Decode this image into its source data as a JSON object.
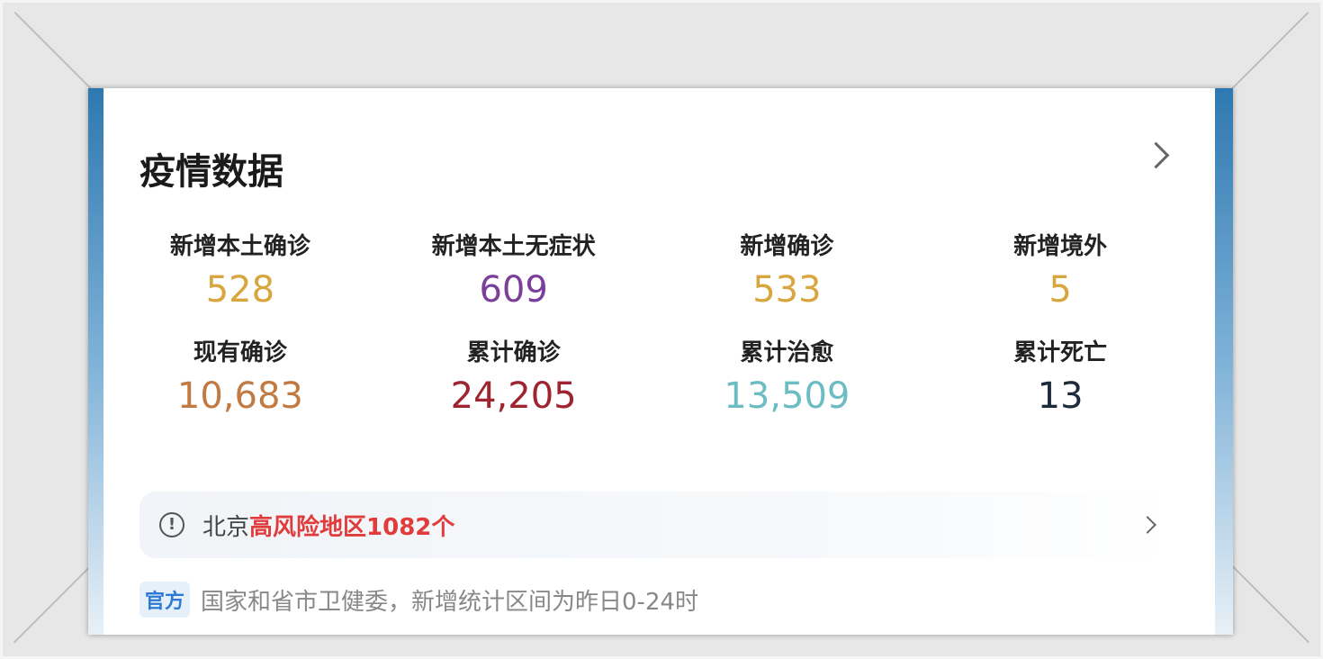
{
  "card": {
    "title": "疫情数据"
  },
  "stats": [
    {
      "label": "新增本土确诊",
      "value": "528",
      "color": "#d8a63f"
    },
    {
      "label": "新增本土无症状",
      "value": "609",
      "color": "#7b3f9a"
    },
    {
      "label": "新增确诊",
      "value": "533",
      "color": "#d8a63f"
    },
    {
      "label": "新增境外",
      "value": "5",
      "color": "#d8a63f"
    },
    {
      "label": "现有确诊",
      "value": "10,683",
      "color": "#c07a42"
    },
    {
      "label": "累计确诊",
      "value": "24,205",
      "color": "#9e2430"
    },
    {
      "label": "累计治愈",
      "value": "13,509",
      "color": "#6cbcc4"
    },
    {
      "label": "累计死亡",
      "value": "13",
      "color": "#1d2b3a"
    }
  ],
  "notice": {
    "icon": "exclamation-circle-icon",
    "prefix": "北京",
    "highlight": "高风险地区1082个",
    "highlight_color": "#e03c3c"
  },
  "source": {
    "badge": "官方",
    "text": "国家和省市卫健委，新增统计区间为昨日0-24时"
  }
}
